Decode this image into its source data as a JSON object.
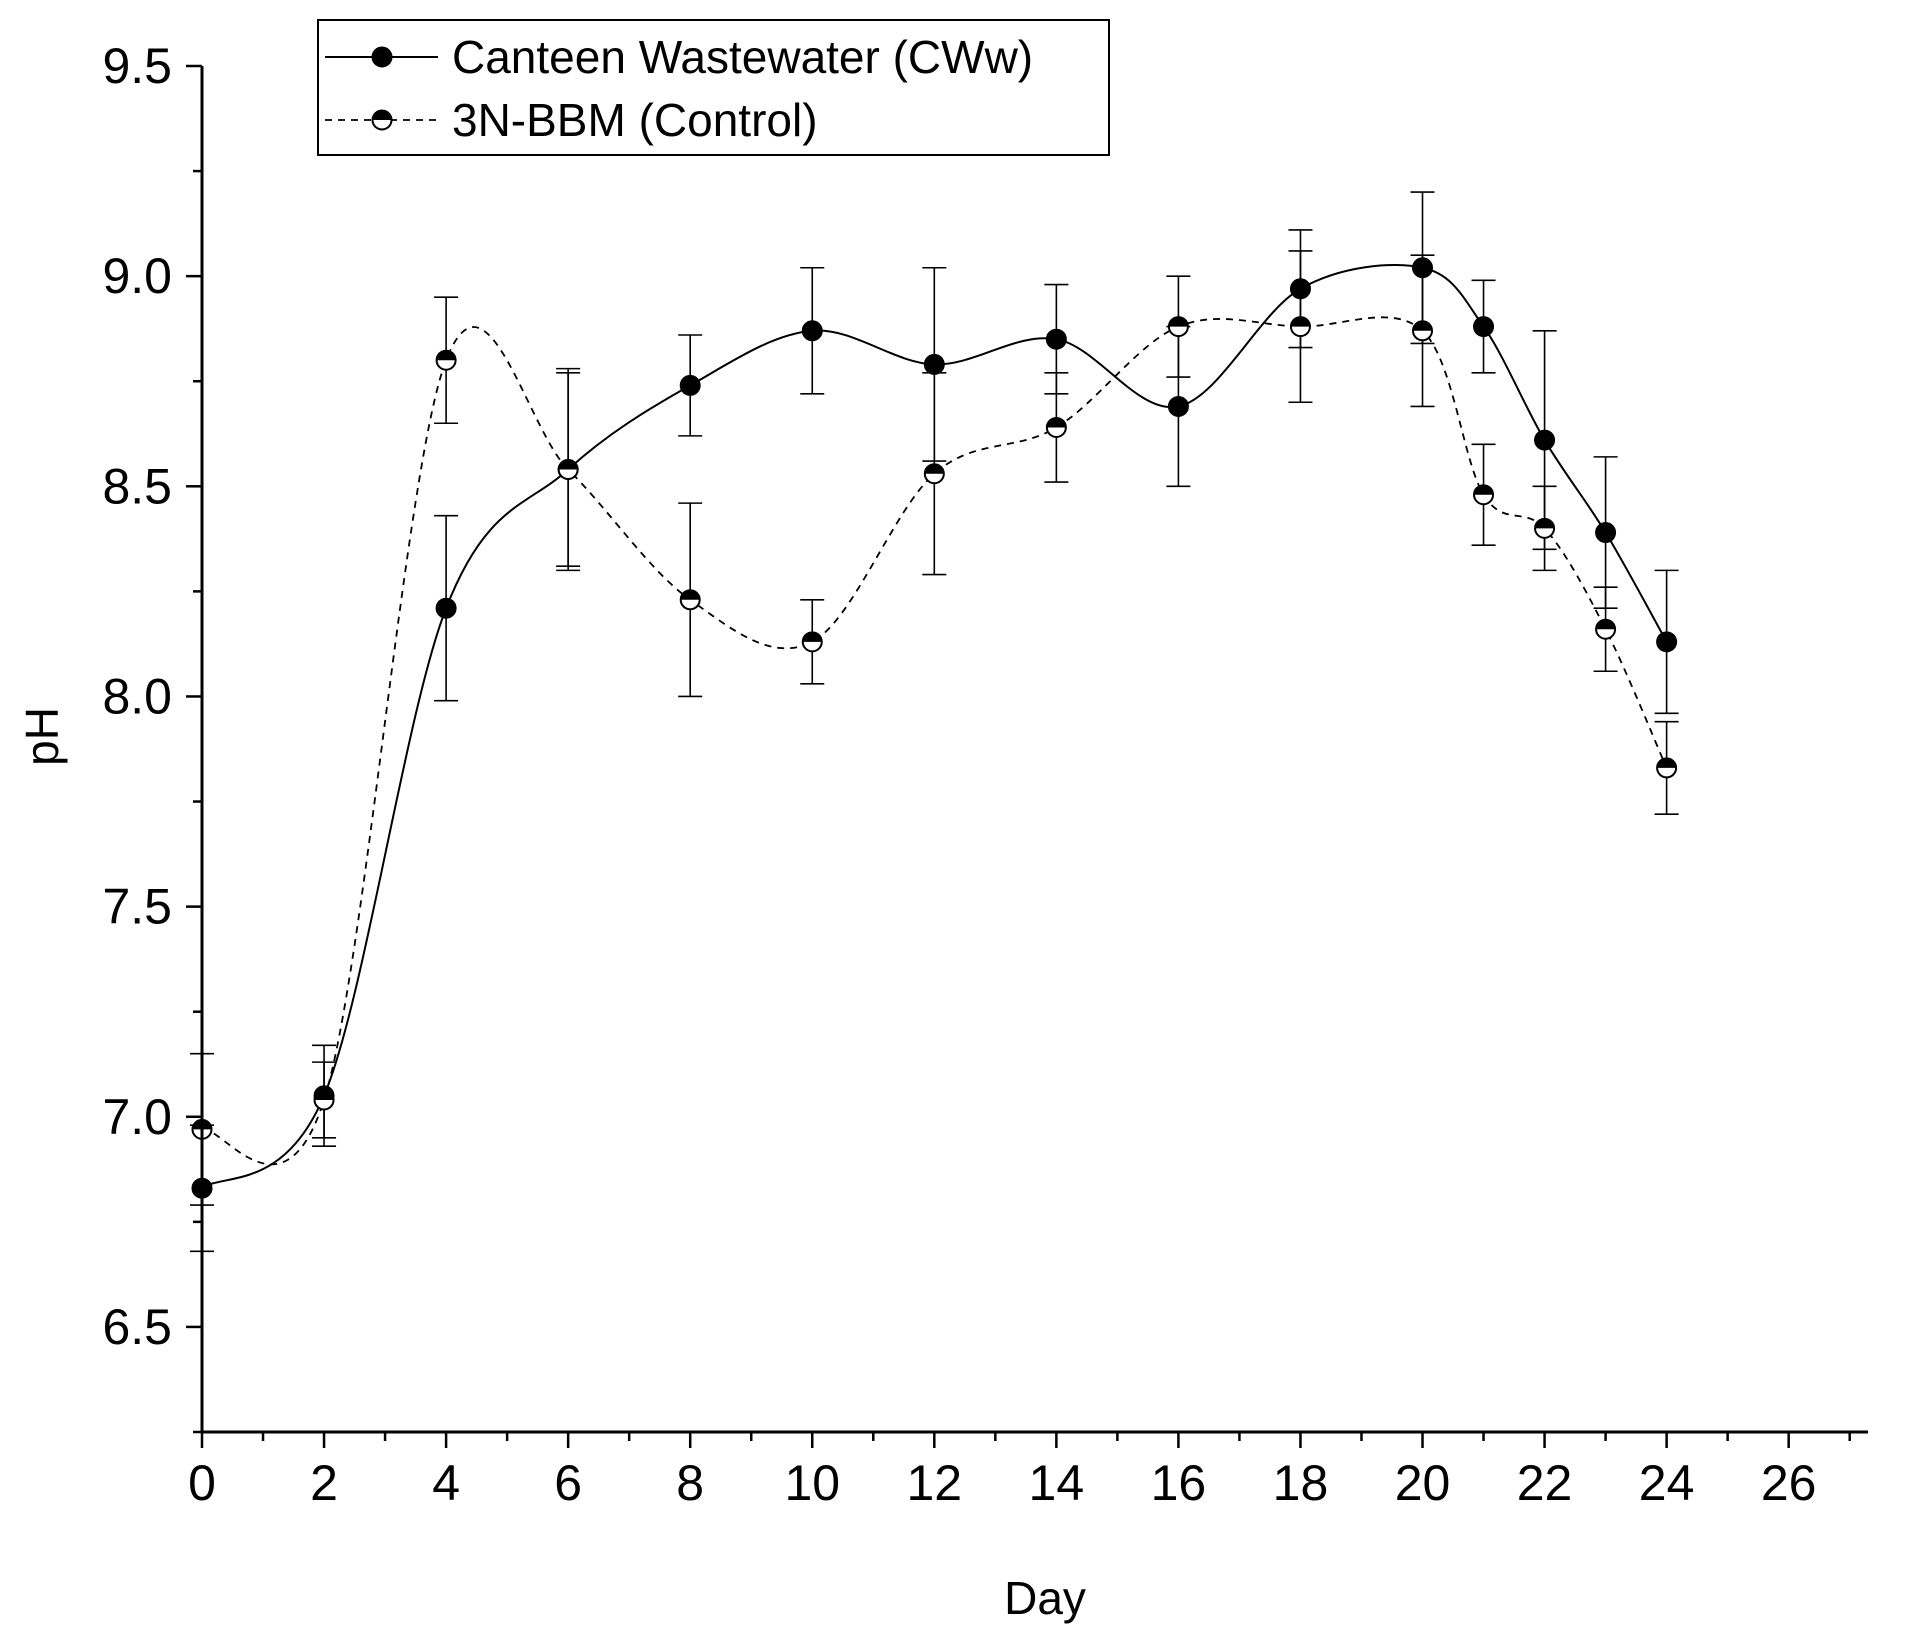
{
  "chart_data": {
    "type": "line",
    "title": "",
    "xlabel": "Day",
    "ylabel": "pH",
    "xlim": [
      0,
      27.3
    ],
    "ylim": [
      6.25,
      9.5
    ],
    "x_ticks": [
      0,
      2,
      4,
      6,
      8,
      10,
      12,
      14,
      16,
      18,
      20,
      22,
      24,
      26
    ],
    "x_tick_labels": [
      "0",
      "2",
      "4",
      "6",
      "8",
      "10",
      "12",
      "14",
      "16",
      "18",
      "20",
      "22",
      "24",
      "26"
    ],
    "y_ticks": [
      6.5,
      7.0,
      7.5,
      8.0,
      8.5,
      9.0,
      9.5
    ],
    "y_tick_labels": [
      "6.5",
      "7.0",
      "7.5",
      "8.0",
      "8.5",
      "9.0",
      "9.5"
    ],
    "grid": false,
    "legend": {
      "position": "top-left"
    },
    "series": [
      {
        "name": "Canteen Wastewater (CWw)",
        "marker": "filled-circle",
        "line_style": "solid",
        "color": "#000000",
        "x": [
          0,
          2,
          4,
          6,
          8,
          10,
          12,
          14,
          16,
          18,
          20,
          21,
          22,
          23,
          24
        ],
        "y": [
          6.83,
          7.05,
          8.21,
          8.54,
          8.74,
          8.87,
          8.79,
          8.85,
          8.69,
          8.97,
          9.02,
          8.88,
          8.61,
          8.39,
          8.13
        ],
        "error": [
          0.15,
          0.12,
          0.22,
          0.23,
          0.12,
          0.15,
          0.23,
          0.13,
          0.19,
          0.14,
          0.18,
          0.11,
          0.26,
          0.18,
          0.17
        ]
      },
      {
        "name": "3N-BBM (Control)",
        "marker": "half-filled-circle",
        "line_style": "dashed",
        "color": "#000000",
        "x": [
          0,
          2,
          4,
          6,
          8,
          10,
          12,
          14,
          16,
          18,
          20,
          21,
          22,
          23,
          24
        ],
        "y": [
          6.97,
          7.04,
          8.8,
          8.54,
          8.23,
          8.13,
          8.53,
          8.64,
          8.88,
          8.88,
          8.87,
          8.48,
          8.4,
          8.16,
          7.83
        ],
        "error": [
          0.18,
          0.09,
          0.15,
          0.24,
          0.23,
          0.1,
          0.24,
          0.13,
          0.12,
          0.18,
          0.18,
          0.12,
          0.1,
          0.1,
          0.11
        ]
      }
    ]
  }
}
